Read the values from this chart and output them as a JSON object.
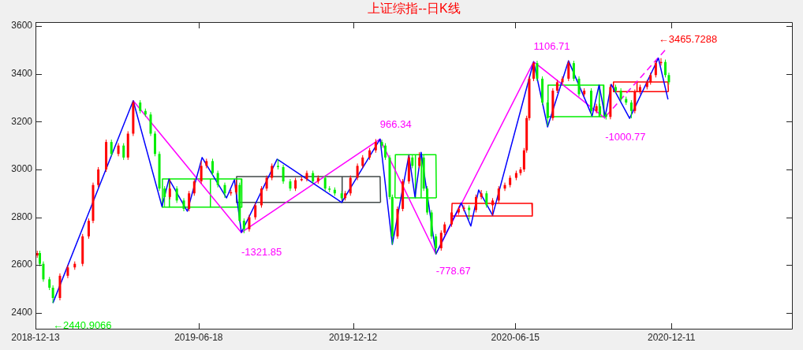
{
  "chart_data": {
    "type": "candlestick",
    "title": "上证综指--日K线",
    "x": [
      "2018-12-15",
      "2018-12-18",
      "2018-12-22",
      "2018-12-29",
      "2019-01-02",
      "2019-01-10",
      "2019-01-19",
      "2019-01-27",
      "2019-02-05",
      "2019-02-12",
      "2019-02-17",
      "2019-02-23",
      "2019-03-04",
      "2019-03-10",
      "2019-03-18",
      "2019-03-24",
      "2019-03-29",
      "2019-04-04",
      "2019-04-12",
      "2019-04-18",
      "2019-04-24",
      "2019-04-29",
      "2019-05-04",
      "2019-05-10",
      "2019-05-16",
      "2019-05-24",
      "2019-06-01",
      "2019-06-07",
      "2019-06-13",
      "2019-06-21",
      "2019-06-27",
      "2019-07-04",
      "2019-07-10",
      "2019-07-18",
      "2019-07-25",
      "2019-07-31",
      "2019-08-04",
      "2019-08-09",
      "2019-08-15",
      "2019-08-22",
      "2019-08-29",
      "2019-09-04",
      "2019-09-10",
      "2019-09-17",
      "2019-09-23",
      "2019-10-01",
      "2019-10-07",
      "2019-10-14",
      "2019-10-20",
      "2019-10-27",
      "2019-11-02",
      "2019-11-10",
      "2019-11-15",
      "2019-11-21",
      "2019-11-29",
      "2019-12-03",
      "2019-12-09",
      "2019-12-17",
      "2019-12-23",
      "2019-12-31",
      "2020-01-07",
      "2020-01-14",
      "2020-01-18",
      "2020-01-23",
      "2020-01-26",
      "2020-02-01",
      "2020-02-07",
      "2020-02-14",
      "2020-02-18",
      "2020-02-26",
      "2020-03-02",
      "2020-03-06",
      "2020-03-11",
      "2020-03-16",
      "2020-03-22",
      "2020-03-26",
      "2020-04-03",
      "2020-04-11",
      "2020-04-17",
      "2020-04-23",
      "2020-05-01",
      "2020-05-07",
      "2020-05-13",
      "2020-05-20",
      "2020-05-27",
      "2020-06-03",
      "2020-06-09",
      "2020-06-16",
      "2020-06-21",
      "2020-06-25",
      "2020-06-28",
      "2020-07-01",
      "2020-07-06",
      "2020-07-10",
      "2020-07-16",
      "2020-07-22",
      "2020-07-28",
      "2020-08-02",
      "2020-08-08",
      "2020-08-15",
      "2020-08-21",
      "2020-08-27",
      "2020-09-02",
      "2020-09-10",
      "2020-09-16",
      "2020-09-20",
      "2020-09-27",
      "2020-10-02",
      "2020-10-08",
      "2020-10-14",
      "2020-10-20",
      "2020-10-26",
      "2020-10-30",
      "2020-11-05",
      "2020-11-13",
      "2020-11-17",
      "2020-11-23",
      "2020-11-29",
      "2020-12-04",
      "2020-12-08"
    ],
    "ohlc": [
      [
        2640,
        2660,
        2630,
        2650
      ],
      [
        2650,
        2660,
        2595,
        2605
      ],
      [
        2605,
        2615,
        2530,
        2540
      ],
      [
        2540,
        2550,
        2495,
        2505
      ],
      [
        2505,
        2515,
        2441,
        2462
      ],
      [
        2462,
        2565,
        2452,
        2555
      ],
      [
        2555,
        2600,
        2545,
        2590
      ],
      [
        2590,
        2615,
        2580,
        2605
      ],
      [
        2605,
        2730,
        2595,
        2720
      ],
      [
        2720,
        2795,
        2710,
        2785
      ],
      [
        2785,
        2945,
        2775,
        2935
      ],
      [
        2935,
        3010,
        2925,
        3000
      ],
      [
        3000,
        3125,
        2990,
        3115
      ],
      [
        3115,
        3125,
        3055,
        3065
      ],
      [
        3065,
        3110,
        3055,
        3100
      ],
      [
        3100,
        3110,
        3040,
        3050
      ],
      [
        3050,
        3160,
        3040,
        3150
      ],
      [
        3150,
        3288,
        3140,
        3280
      ],
      [
        3280,
        3290,
        3235,
        3245
      ],
      [
        3245,
        3255,
        3220,
        3230
      ],
      [
        3230,
        3240,
        3140,
        3150
      ],
      [
        3150,
        3160,
        3055,
        3065
      ],
      [
        3065,
        3075,
        2910,
        2920
      ],
      [
        2920,
        2930,
        2845,
        2885
      ],
      [
        2885,
        2960,
        2875,
        2920
      ],
      [
        2920,
        2930,
        2860,
        2870
      ],
      [
        2870,
        2880,
        2825,
        2835
      ],
      [
        2835,
        2910,
        2825,
        2900
      ],
      [
        2900,
        2960,
        2890,
        2950
      ],
      [
        2950,
        3035,
        2940,
        3015
      ],
      [
        3015,
        3045,
        3005,
        3035
      ],
      [
        3035,
        3045,
        2975,
        2985
      ],
      [
        2985,
        2995,
        2925,
        2935
      ],
      [
        2935,
        2945,
        2881,
        2900
      ],
      [
        2900,
        2915,
        2890,
        2905
      ],
      [
        2905,
        2957,
        2895,
        2935
      ],
      [
        2935,
        2945,
        2780,
        2785
      ],
      [
        2785,
        2795,
        2733,
        2750
      ],
      [
        2750,
        2810,
        2740,
        2800
      ],
      [
        2800,
        2860,
        2790,
        2850
      ],
      [
        2850,
        2930,
        2840,
        2920
      ],
      [
        2920,
        2975,
        2910,
        2965
      ],
      [
        2965,
        3025,
        2955,
        3015
      ],
      [
        3015,
        3043,
        3000,
        3010
      ],
      [
        3010,
        3020,
        2940,
        2950
      ],
      [
        2950,
        2960,
        2910,
        2920
      ],
      [
        2920,
        2965,
        2910,
        2955
      ],
      [
        2955,
        2970,
        2950,
        2960
      ],
      [
        2960,
        2995,
        2950,
        2985
      ],
      [
        2985,
        2995,
        2940,
        2950
      ],
      [
        2950,
        2975,
        2940,
        2965
      ],
      [
        2965,
        2975,
        2910,
        2920
      ],
      [
        2920,
        2930,
        2905,
        2915
      ],
      [
        2915,
        2925,
        2890,
        2900
      ],
      [
        2900,
        2910,
        2875,
        2880
      ],
      [
        2880,
        2910,
        2870,
        2900
      ],
      [
        2900,
        2975,
        2890,
        2965
      ],
      [
        2965,
        3025,
        2955,
        3015
      ],
      [
        3015,
        3060,
        3005,
        3050
      ],
      [
        3050,
        3090,
        3040,
        3080
      ],
      [
        3080,
        3127,
        3070,
        3115
      ],
      [
        3115,
        3125,
        3090,
        3100
      ],
      [
        3100,
        3110,
        3040,
        3050
      ],
      [
        3050,
        3060,
        2875,
        2885
      ],
      [
        2885,
        2895,
        2686,
        2720
      ],
      [
        2720,
        2845,
        2710,
        2835
      ],
      [
        2835,
        2960,
        2825,
        2950
      ],
      [
        2950,
        3060,
        2940,
        3050
      ],
      [
        3050,
        3060,
        3005,
        3015
      ],
      [
        3015,
        3072,
        3005,
        3050
      ],
      [
        3050,
        3060,
        2910,
        2920
      ],
      [
        2920,
        2930,
        2810,
        2820
      ],
      [
        2820,
        2830,
        2710,
        2720
      ],
      [
        2720,
        2730,
        2646,
        2670
      ],
      [
        2670,
        2745,
        2660,
        2735
      ],
      [
        2735,
        2780,
        2725,
        2770
      ],
      [
        2770,
        2830,
        2760,
        2820
      ],
      [
        2820,
        2845,
        2810,
        2835
      ],
      [
        2835,
        2850,
        2825,
        2840
      ],
      [
        2840,
        2850,
        2790,
        2830
      ],
      [
        2830,
        2895,
        2820,
        2885
      ],
      [
        2885,
        2914,
        2875,
        2900
      ],
      [
        2900,
        2910,
        2840,
        2850
      ],
      [
        2850,
        2880,
        2808,
        2870
      ],
      [
        2870,
        2930,
        2860,
        2920
      ],
      [
        2920,
        2945,
        2910,
        2935
      ],
      [
        2935,
        2975,
        2925,
        2965
      ],
      [
        2965,
        2995,
        2955,
        2985
      ],
      [
        2985,
        3010,
        2975,
        3000
      ],
      [
        3000,
        3090,
        2990,
        3080
      ],
      [
        3080,
        3225,
        3070,
        3215
      ],
      [
        3215,
        3390,
        3205,
        3380
      ],
      [
        3380,
        3451,
        3370,
        3445
      ],
      [
        3445,
        3455,
        3370,
        3380
      ],
      [
        3380,
        3390,
        3270,
        3280
      ],
      [
        3280,
        3290,
        3182,
        3215
      ],
      [
        3215,
        3340,
        3205,
        3330
      ],
      [
        3330,
        3375,
        3320,
        3365
      ],
      [
        3365,
        3390,
        3355,
        3380
      ],
      [
        3380,
        3455,
        3370,
        3445
      ],
      [
        3445,
        3455,
        3370,
        3380
      ],
      [
        3380,
        3390,
        3305,
        3315
      ],
      [
        3315,
        3340,
        3305,
        3330
      ],
      [
        3330,
        3340,
        3224,
        3245
      ],
      [
        3245,
        3275,
        3235,
        3265
      ],
      [
        3265,
        3275,
        3220,
        3230
      ],
      [
        3230,
        3240,
        3209,
        3220
      ],
      [
        3220,
        3356,
        3210,
        3345
      ],
      [
        3345,
        3355,
        3320,
        3330
      ],
      [
        3330,
        3340,
        3285,
        3295
      ],
      [
        3295,
        3305,
        3270,
        3280
      ],
      [
        3280,
        3290,
        3214,
        3245
      ],
      [
        3245,
        3335,
        3235,
        3325
      ],
      [
        3325,
        3355,
        3315,
        3345
      ],
      [
        3345,
        3375,
        3335,
        3365
      ],
      [
        3365,
        3405,
        3355,
        3395
      ],
      [
        3395,
        3455,
        3385,
        3445
      ],
      [
        3445,
        3466,
        3435,
        3450
      ],
      [
        3450,
        3460,
        3385,
        3395
      ],
      [
        3395,
        3405,
        3355,
        3365
      ]
    ],
    "series": [
      {
        "type": "line",
        "color": "#0000ff",
        "x": [
          "2019-01-02",
          "2019-04-04",
          "2019-05-07",
          "2019-05-15",
          "2019-06-05",
          "2019-06-22",
          "2019-07-20",
          "2019-07-29",
          "2019-08-06",
          "2019-09-16",
          "2019-11-29",
          "2020-01-12",
          "2020-01-26",
          "2020-02-14",
          "2020-02-21",
          "2020-02-28",
          "2020-03-16",
          "2020-04-14",
          "2020-04-25",
          "2020-05-04",
          "2020-05-20",
          "2020-07-06",
          "2020-07-22",
          "2020-08-15",
          "2020-09-11",
          "2020-09-19",
          "2020-09-26",
          "2020-10-03",
          "2020-10-24",
          "2020-11-26",
          "2020-12-07"
        ],
        "values": [
          2441,
          3288,
          2845,
          2960,
          2825,
          3050,
          2881,
          2957,
          2736,
          3043,
          2862,
          3127,
          2686,
          3060,
          2885,
          3072,
          2646,
          2860,
          2763,
          2914,
          2808,
          3451,
          3178,
          3455,
          3224,
          3353,
          3221,
          3356,
          3214,
          3466,
          3293
        ]
      },
      {
        "type": "line",
        "color": "#ff00ff",
        "x": [
          "2019-04-04",
          "2019-08-06",
          "2020-01-12",
          "2020-03-16",
          "2020-07-06",
          "2020-09-26"
        ],
        "values": [
          3288,
          2736,
          3127,
          2646,
          3451,
          3214
        ]
      },
      {
        "type": "line",
        "color": "#ff00ff",
        "line_style": "dashed",
        "x": [
          "2020-09-27",
          "2020-12-04"
        ],
        "values": [
          3224,
          3501
        ]
      },
      {
        "type": "line",
        "color": "#00ee00",
        "x": [
          "2019-05-07T00:00",
          "2019-05-07T12:00",
          "2019-08-06T00:00",
          "2019-08-06T12:00"
        ],
        "values": [
          2842,
          2960,
          2960,
          2842
        ]
      },
      {
        "type": "line",
        "color": "#00ee00",
        "x": [
          "2019-05-07T00:00",
          "2019-08-06T12:00"
        ],
        "values": [
          2842,
          2842
        ]
      },
      {
        "type": "line",
        "color": "#00ee00",
        "x": [
          "2019-05-15T00:00",
          "2019-05-15T12:00"
        ],
        "values": [
          2842,
          2960
        ]
      },
      {
        "type": "line",
        "color": "#00ee00",
        "x": [
          "2019-07-01T00:00",
          "2019-07-01T12:00"
        ],
        "values": [
          2842,
          2960
        ]
      },
      {
        "type": "line",
        "color": "#404848",
        "x": [
          "2019-07-31T00:00",
          "2019-07-31T12:00",
          "2020-01-12T00:00",
          "2020-01-12T12:00"
        ],
        "values": [
          2862,
          2970,
          2970,
          2862
        ]
      },
      {
        "type": "line",
        "color": "#404848",
        "x": [
          "2019-07-31T00:00",
          "2020-01-12T12:00"
        ],
        "values": [
          2862,
          2862
        ]
      },
      {
        "type": "line",
        "color": "#404848",
        "x": [
          "2019-11-29T00:00",
          "2019-11-29T12:00"
        ],
        "values": [
          2862,
          2970
        ]
      },
      {
        "type": "line",
        "color": "#00ee00",
        "x": [
          "2020-01-29T00:00",
          "2020-01-29T12:00",
          "2020-03-16T00:00",
          "2020-03-16T12:00"
        ],
        "values": [
          2881,
          3062,
          3062,
          2881
        ]
      },
      {
        "type": "line",
        "color": "#00ee00",
        "x": [
          "2020-01-29T00:00",
          "2020-03-16T12:00"
        ],
        "values": [
          2881,
          2881
        ]
      },
      {
        "type": "line",
        "color": "#00ee00",
        "x": [
          "2020-02-21T00:00",
          "2020-02-21T12:00"
        ],
        "values": [
          2881,
          3062
        ]
      },
      {
        "type": "line",
        "color": "#00ee00",
        "x": [
          "2020-02-28T00:00",
          "2020-02-28T12:00"
        ],
        "values": [
          2881,
          3062
        ]
      },
      {
        "type": "line",
        "color": "#ff0000",
        "x": [
          "2020-04-03T00:00",
          "2020-04-03T12:00",
          "2020-07-04T00:00",
          "2020-07-04T12:00"
        ],
        "values": [
          2805,
          2858,
          2858,
          2805
        ]
      },
      {
        "type": "line",
        "color": "#ff0000",
        "x": [
          "2020-04-03T00:00",
          "2020-07-04T12:00"
        ],
        "values": [
          2805,
          2805
        ]
      },
      {
        "type": "line",
        "color": "#00ee00",
        "x": [
          "2020-07-22T00:00",
          "2020-07-22T12:00",
          "2020-09-24T00:00",
          "2020-09-24T12:00"
        ],
        "values": [
          3221,
          3353,
          3353,
          3221
        ]
      },
      {
        "type": "line",
        "color": "#00ee00",
        "x": [
          "2020-07-22T00:00",
          "2020-09-24T12:00"
        ],
        "values": [
          3221,
          3221
        ]
      },
      {
        "type": "line",
        "color": "#00ee00",
        "x": [
          "2020-09-19T00:00",
          "2020-09-19T12:00"
        ],
        "values": [
          3221,
          3353
        ]
      },
      {
        "type": "line",
        "color": "#ff0000",
        "x": [
          "2020-10-05T00:00",
          "2020-10-05T12:00",
          "2020-12-07T00:00",
          "2020-12-07T12:00"
        ],
        "values": [
          3326,
          3366,
          3366,
          3326
        ]
      },
      {
        "type": "line",
        "color": "#ff0000",
        "x": [
          "2020-10-05T00:00",
          "2020-12-07T12:00"
        ],
        "values": [
          3326,
          3326
        ]
      },
      {
        "type": "line",
        "color": "#ff0000",
        "x": [
          "2020-11-01T00:00",
          "2020-11-01T12:00"
        ],
        "values": [
          3326,
          3366
        ]
      }
    ],
    "annotations": [
      {
        "text": "←2440.9066",
        "x": "2019-01-02",
        "y": 2441
      },
      {
        "text": "-1321.85",
        "x": "2019-08-06",
        "y": 2736
      },
      {
        "text": "966.34",
        "x": "2020-01-12",
        "y": 3127
      },
      {
        "text": "-778.67",
        "x": "2020-03-16",
        "y": 2646
      },
      {
        "text": "1106.71",
        "x": "2020-07-06",
        "y": 3451
      },
      {
        "text": "-1000.77",
        "x": "2020-09-26",
        "y": 3214
      },
      {
        "text": "←3465.7288",
        "x": "2020-11-26",
        "y": 3466
      }
    ],
    "xlim": [
      "2018-12-13",
      "2021-04-29"
    ],
    "xticks": [
      "2018-12-13",
      "2019-06-18",
      "2019-12-12",
      "2020-06-15",
      "2020-12-11"
    ],
    "ylim": [
      2330,
      3617
    ],
    "yticks": [
      2400,
      2600,
      2800,
      3000,
      3200,
      3400,
      3600
    ],
    "marker": "none",
    "grid": false,
    "legend": false
  }
}
